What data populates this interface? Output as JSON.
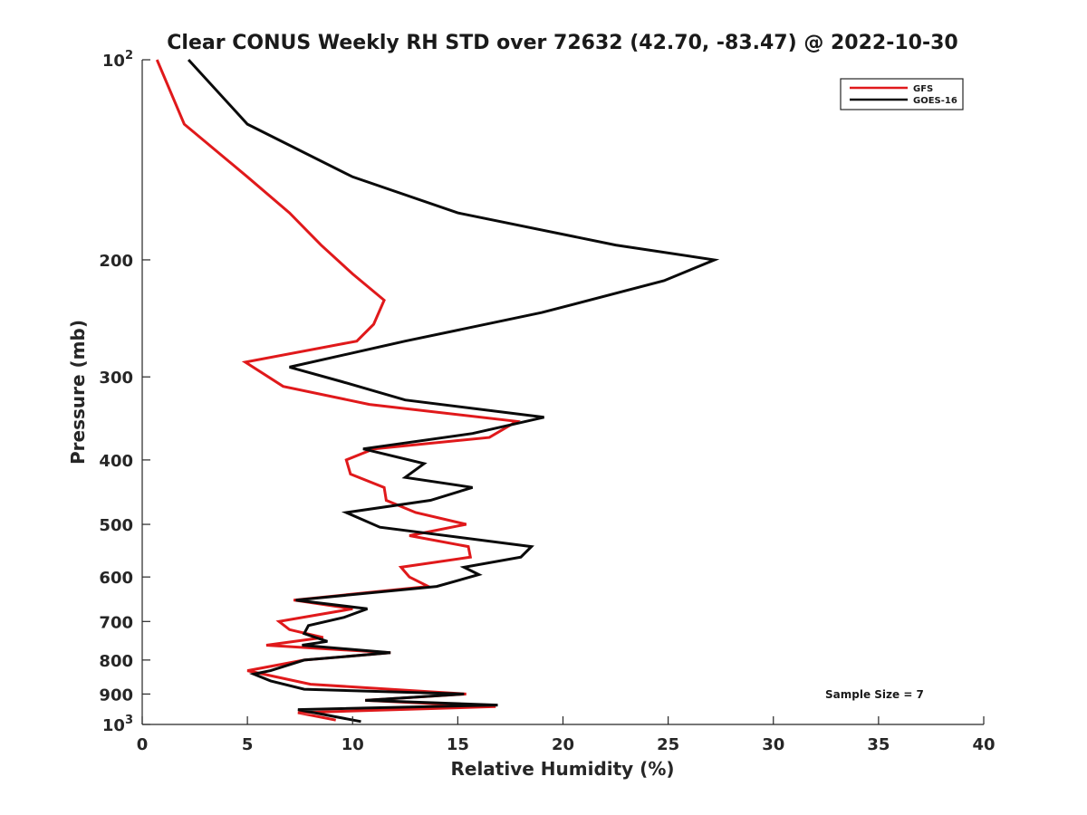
{
  "chart_data": {
    "type": "line",
    "title": "Clear CONUS Weekly RH STD over 72632 (42.70, -83.47) @ 2022-10-30",
    "xlabel": "Relative Humidity (%)",
    "ylabel": "Pressure (mb)",
    "xlim": [
      0,
      40
    ],
    "ylim": [
      100,
      1000
    ],
    "y_scale": "log",
    "y_reversed": true,
    "grid": false,
    "legend_placement": "top-right",
    "x_ticks": [
      {
        "value": 0,
        "label": "0"
      },
      {
        "value": 5,
        "label": "5"
      },
      {
        "value": 10,
        "label": "10"
      },
      {
        "value": 15,
        "label": "15"
      },
      {
        "value": 20,
        "label": "20"
      },
      {
        "value": 25,
        "label": "25"
      },
      {
        "value": 30,
        "label": "30"
      },
      {
        "value": 35,
        "label": "35"
      },
      {
        "value": 40,
        "label": "40"
      }
    ],
    "y_ticks": [
      {
        "value": 100,
        "base": "10",
        "exp": "2"
      },
      {
        "value": 200,
        "base": "200",
        "exp": ""
      },
      {
        "value": 300,
        "base": "300",
        "exp": ""
      },
      {
        "value": 400,
        "base": "400",
        "exp": ""
      },
      {
        "value": 500,
        "base": "500",
        "exp": ""
      },
      {
        "value": 600,
        "base": "600",
        "exp": ""
      },
      {
        "value": 700,
        "base": "700",
        "exp": ""
      },
      {
        "value": 800,
        "base": "800",
        "exp": ""
      },
      {
        "value": 900,
        "base": "900",
        "exp": ""
      },
      {
        "value": 1000,
        "base": "10",
        "exp": "3"
      }
    ],
    "series": [
      {
        "name": "GFS",
        "color": "#e0191b",
        "points": [
          [
            0.7,
            100
          ],
          [
            2.0,
            125
          ],
          [
            5.0,
            150
          ],
          [
            7.0,
            170
          ],
          [
            8.5,
            190
          ],
          [
            10.0,
            210
          ],
          [
            11.5,
            230
          ],
          [
            11.0,
            250
          ],
          [
            10.2,
            265
          ],
          [
            4.9,
            285
          ],
          [
            6.7,
            310
          ],
          [
            10.8,
            330
          ],
          [
            17.8,
            350
          ],
          [
            16.5,
            370
          ],
          [
            11.0,
            385
          ],
          [
            9.7,
            400
          ],
          [
            9.9,
            420
          ],
          [
            11.5,
            440
          ],
          [
            11.6,
            460
          ],
          [
            13.0,
            480
          ],
          [
            15.4,
            500
          ],
          [
            12.7,
            520
          ],
          [
            15.5,
            540
          ],
          [
            15.6,
            560
          ],
          [
            12.3,
            580
          ],
          [
            12.7,
            600
          ],
          [
            13.6,
            620
          ],
          [
            7.2,
            650
          ],
          [
            10.0,
            670
          ],
          [
            6.5,
            700
          ],
          [
            7.0,
            720
          ],
          [
            8.6,
            740
          ],
          [
            5.9,
            760
          ],
          [
            11.8,
            780
          ],
          [
            7.7,
            800
          ],
          [
            5.0,
            830
          ],
          [
            8.0,
            870
          ],
          [
            15.4,
            900
          ],
          [
            10.6,
            920
          ],
          [
            16.8,
            940
          ],
          [
            7.4,
            960
          ],
          [
            9.2,
            985
          ]
        ]
      },
      {
        "name": "GOES-16",
        "color": "#0a0a0a",
        "points": [
          [
            2.2,
            100
          ],
          [
            5.0,
            125
          ],
          [
            10.0,
            150
          ],
          [
            15.0,
            170
          ],
          [
            22.5,
            190
          ],
          [
            27.2,
            200
          ],
          [
            24.8,
            215
          ],
          [
            19.0,
            240
          ],
          [
            12.5,
            265
          ],
          [
            7.0,
            290
          ],
          [
            9.5,
            305
          ],
          [
            12.5,
            325
          ],
          [
            19.1,
            345
          ],
          [
            15.7,
            365
          ],
          [
            10.5,
            385
          ],
          [
            13.4,
            405
          ],
          [
            12.5,
            425
          ],
          [
            15.7,
            440
          ],
          [
            13.7,
            460
          ],
          [
            9.7,
            480
          ],
          [
            11.3,
            505
          ],
          [
            18.5,
            540
          ],
          [
            18.0,
            560
          ],
          [
            15.3,
            580
          ],
          [
            16.0,
            595
          ],
          [
            14.0,
            620
          ],
          [
            7.3,
            650
          ],
          [
            10.7,
            670
          ],
          [
            9.6,
            690
          ],
          [
            7.9,
            710
          ],
          [
            7.7,
            730
          ],
          [
            8.8,
            750
          ],
          [
            7.6,
            760
          ],
          [
            11.8,
            780
          ],
          [
            7.7,
            800
          ],
          [
            6.1,
            830
          ],
          [
            5.3,
            840
          ],
          [
            6.1,
            860
          ],
          [
            7.7,
            885
          ],
          [
            15.3,
            900
          ],
          [
            10.6,
            920
          ],
          [
            16.9,
            935
          ],
          [
            7.4,
            950
          ],
          [
            10.4,
            990
          ]
        ]
      }
    ],
    "annotations": [
      {
        "text": "Sample Size = 7"
      }
    ]
  }
}
